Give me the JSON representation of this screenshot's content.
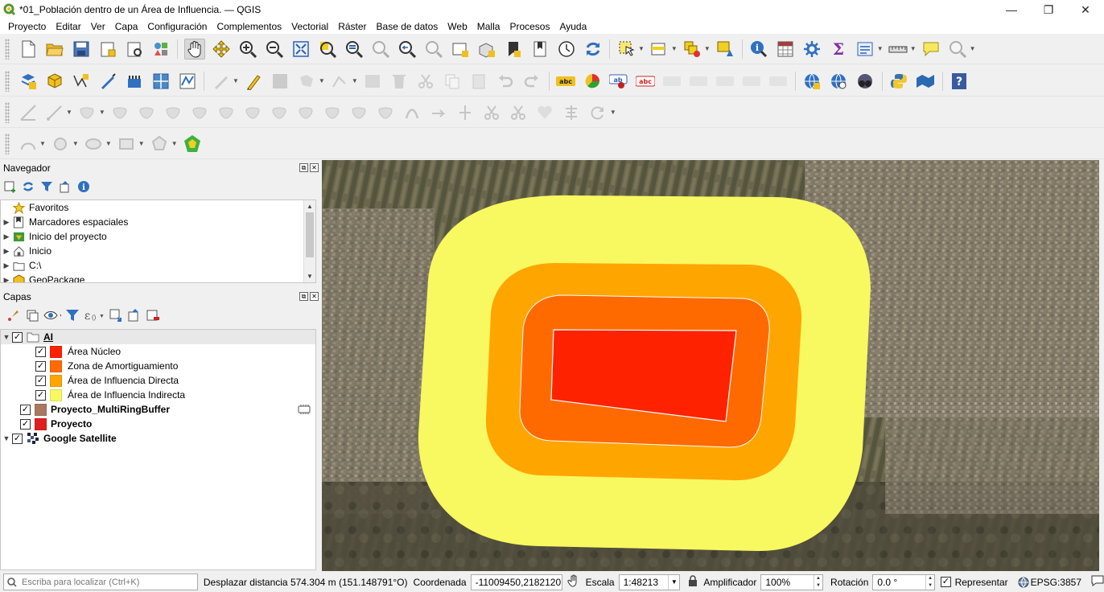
{
  "window": {
    "title": "*01_Población dentro de un Área de Influencia. — QGIS",
    "buttons": {
      "minimize": "—",
      "maximize": "❐",
      "close": "✕"
    }
  },
  "menu": [
    "Proyecto",
    "Editar",
    "Ver",
    "Capa",
    "Configuración",
    "Complementos",
    "Vectorial",
    "Ráster",
    "Base de datos",
    "Web",
    "Malla",
    "Procesos",
    "Ayuda"
  ],
  "navigator": {
    "title": "Navegador",
    "items": [
      {
        "label": "Favoritos",
        "icon": "star-icon",
        "expandable": false
      },
      {
        "label": "Marcadores espaciales",
        "icon": "bookmarks-icon",
        "expandable": true
      },
      {
        "label": "Inicio del proyecto",
        "icon": "project-home-icon",
        "expandable": true
      },
      {
        "label": "Inicio",
        "icon": "home-folder-icon",
        "expandable": true
      },
      {
        "label": "C:\\",
        "icon": "drive-icon",
        "expandable": true
      },
      {
        "label": "GeoPackage",
        "icon": "geopackage-icon",
        "expandable": true
      }
    ]
  },
  "layers": {
    "title": "Capas",
    "group": {
      "label": "AI",
      "checked": true
    },
    "group_items": [
      {
        "label": "Área Núcleo",
        "color": "#ff2200"
      },
      {
        "label": "Zona de Amortiguamiento",
        "color": "#ff6a00"
      },
      {
        "label": "Área de Influencia Directa",
        "color": "#ffa500"
      },
      {
        "label": "Área de Influencia Indirecta",
        "color": "#f8f860"
      }
    ],
    "other": [
      {
        "label": "Proyecto_MultiRingBuffer",
        "color": "#a87860"
      },
      {
        "label": "Proyecto",
        "color": "#e02020"
      },
      {
        "label": "Google Satellite"
      }
    ]
  },
  "colors": {
    "nucleo": "#ff2200",
    "amortiguamiento": "#ff6a00",
    "directa": "#ffa500",
    "indirecta": "#f8f860"
  },
  "status": {
    "locator_placeholder": "Escriba para localizar (Ctrl+K)",
    "message": "Desplazar distancia 574.304 m (151.148791°O)",
    "coordinate_label": "Coordenada",
    "coordinate_value": "-11009450,2182120",
    "scale_label": "Escala",
    "scale_value": "1:48213",
    "magnifier_label": "Amplificador",
    "magnifier_value": "100%",
    "rotation_label": "Rotación",
    "rotation_value": "0.0 °",
    "render_label": "Representar",
    "crs": "EPSG:3857"
  }
}
